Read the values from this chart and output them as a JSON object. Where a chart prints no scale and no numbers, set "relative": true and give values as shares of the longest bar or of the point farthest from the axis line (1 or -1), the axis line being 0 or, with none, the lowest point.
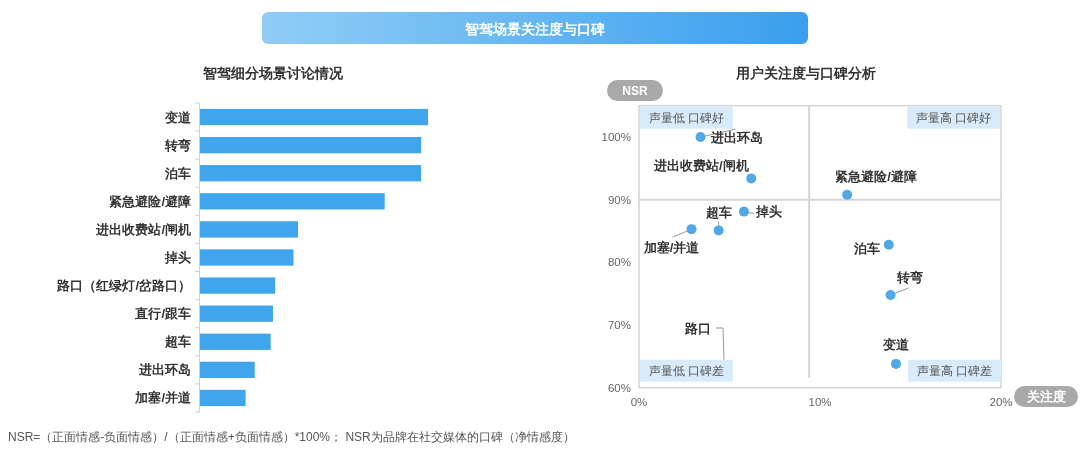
{
  "chart_data": [
    {
      "type": "other",
      "title": "智驾场景关注度与口碑",
      "annotations": [
        "NSR=（正面情感-负面情感）/（正面情感+负面情感）*100%； NSR为品牌在社交媒体的口碑（净情感度）"
      ]
    },
    {
      "type": "bar",
      "title": "智驾细分场景讨论情况",
      "orientation": "horizontal",
      "relative": true,
      "categories": [
        "变道",
        "转弯",
        "泊车",
        "紧急避险/避障",
        "进出收费站/闸机",
        "掉头",
        "路口（红绿灯/岔路口）",
        "直行/跟车",
        "超车",
        "进出环岛",
        "加塞/并道"
      ],
      "values": [
        1,
        0.97,
        0.97,
        0.81,
        0.43,
        0.41,
        0.33,
        0.32,
        0.31,
        0.24,
        0.2
      ],
      "color": "#3fa5ec"
    },
    {
      "type": "scatter",
      "title": "用户关注度与口碑分析",
      "xlabel": "关注度",
      "ylabel": "NSR",
      "x": [
        3.4,
        6.2,
        11.5,
        5.8,
        4.4,
        2.9,
        13.8,
        13.9,
        14.2
      ],
      "values": [
        100,
        93.4,
        90.8,
        88.1,
        85.1,
        85.3,
        82.8,
        74.8,
        63.8
      ],
      "color": "#52a7e6",
      "marker": "circle",
      "xlim": [
        0,
        20
      ],
      "ylim": [
        60,
        105
      ],
      "xticks": [
        {
          "value": 0,
          "label": "0%"
        },
        {
          "value": 10,
          "label": "10%"
        },
        {
          "value": 20,
          "label": "20%"
        }
      ],
      "yticks": [
        {
          "value": 60,
          "label": "60%"
        },
        {
          "value": 70,
          "label": "70%"
        },
        {
          "value": 80,
          "label": "80%"
        },
        {
          "value": 90,
          "label": "90%"
        },
        {
          "value": 100,
          "label": "100%"
        }
      ],
      "ref_lines": [
        {
          "axis": "x",
          "value": 9.4,
          "color": "#d4d4d4"
        },
        {
          "axis": "y",
          "value": 90,
          "color": "#d4d4d4"
        }
      ],
      "annotations": [
        "声量低 口碑好",
        "声量高 口碑好",
        "声量低 口碑差",
        "声量高 口碑差",
        "路口",
        {
          "text": "进出环岛",
          "x": 3.4,
          "y": 100
        },
        {
          "text": "进出收费站/闸机",
          "x": 6.2,
          "y": 93.4
        },
        {
          "text": "紧急避险/避障",
          "x": 11.5,
          "y": 90.8
        },
        {
          "text": "掉头",
          "x": 5.8,
          "y": 88.1
        },
        {
          "text": "超车",
          "x": 4.4,
          "y": 85.1
        },
        {
          "text": "加塞/并道",
          "x": 2.9,
          "y": 85.3
        },
        {
          "text": "泊车",
          "x": 13.8,
          "y": 82.8
        },
        {
          "text": "转弯",
          "x": 13.9,
          "y": 74.8
        },
        {
          "text": "变道",
          "x": 14.2,
          "y": 63.8
        }
      ]
    }
  ]
}
